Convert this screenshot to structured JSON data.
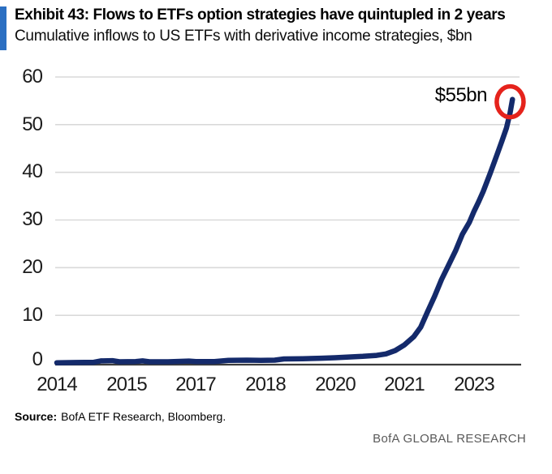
{
  "header": {
    "title": "Exhibit 43: Flows to ETFs option strategies have quintupled in 2 years",
    "subtitle": "Cumulative inflows to US ETFs with derivative income strategies, $bn"
  },
  "footer": {
    "source_label": "Source:",
    "source_text": "BofA ETF Research, Bloomberg.",
    "brand": "BofA GLOBAL RESEARCH"
  },
  "colors": {
    "accent_bar": "#2B6FC2",
    "line": "#142A6B",
    "annotation_circle": "#E5231C",
    "gridline": "#D9D9D9",
    "axis": "#3C3C3C",
    "brand_gray": "#5A5A5A"
  },
  "chart_data": {
    "type": "line",
    "title": "Cumulative inflows to US ETFs with derivative income strategies, $bn",
    "xlabel": "",
    "ylabel": "",
    "xlim": [
      2014,
      2024
    ],
    "ylim": [
      0,
      60
    ],
    "grid": "horizontal",
    "legend": "none",
    "y_tick_values": [
      60,
      50,
      40,
      30,
      20,
      10,
      0
    ],
    "y_tick_labels": [
      "60",
      "50",
      "40",
      "30",
      "20",
      "10",
      "0"
    ],
    "x_tick_positions": [
      2014,
      2015.5,
      2017,
      2018.5,
      2020,
      2021.5,
      2023
    ],
    "x_tick_labels": [
      "2014",
      "2015",
      "2017",
      "2018",
      "2020",
      "2021",
      "2023"
    ],
    "annotation": {
      "label": "$55bn",
      "value_bn": 55,
      "circle_center_year": 2023.78,
      "circle_center_value": 54.8
    },
    "series": [
      {
        "name": "Cumulative inflows to US ETFs with derivative income strategies ($bn)",
        "color": "#142A6B",
        "points": [
          [
            2014.0,
            0.05
          ],
          [
            2014.4,
            0.1
          ],
          [
            2014.8,
            0.15
          ],
          [
            2014.95,
            0.45
          ],
          [
            2015.2,
            0.5
          ],
          [
            2015.35,
            0.25
          ],
          [
            2015.7,
            0.3
          ],
          [
            2015.85,
            0.45
          ],
          [
            2016.0,
            0.25
          ],
          [
            2016.4,
            0.25
          ],
          [
            2016.85,
            0.4
          ],
          [
            2017.0,
            0.3
          ],
          [
            2017.4,
            0.3
          ],
          [
            2017.7,
            0.55
          ],
          [
            2018.1,
            0.6
          ],
          [
            2018.4,
            0.55
          ],
          [
            2018.7,
            0.6
          ],
          [
            2018.9,
            0.85
          ],
          [
            2019.3,
            0.9
          ],
          [
            2019.7,
            1.0
          ],
          [
            2020.0,
            1.1
          ],
          [
            2020.3,
            1.25
          ],
          [
            2020.6,
            1.4
          ],
          [
            2020.9,
            1.6
          ],
          [
            2021.1,
            1.9
          ],
          [
            2021.3,
            2.6
          ],
          [
            2021.5,
            3.8
          ],
          [
            2021.7,
            5.5
          ],
          [
            2021.85,
            7.5
          ],
          [
            2022.0,
            10.8
          ],
          [
            2022.15,
            14.0
          ],
          [
            2022.3,
            17.5
          ],
          [
            2022.45,
            20.5
          ],
          [
            2022.6,
            23.5
          ],
          [
            2022.75,
            27.0
          ],
          [
            2022.9,
            29.5
          ],
          [
            2023.0,
            31.8
          ],
          [
            2023.1,
            33.8
          ],
          [
            2023.2,
            36.0
          ],
          [
            2023.35,
            39.8
          ],
          [
            2023.5,
            43.8
          ],
          [
            2023.6,
            46.5
          ],
          [
            2023.7,
            49.3
          ],
          [
            2023.78,
            52.5
          ],
          [
            2023.83,
            55.3
          ]
        ]
      }
    ]
  }
}
